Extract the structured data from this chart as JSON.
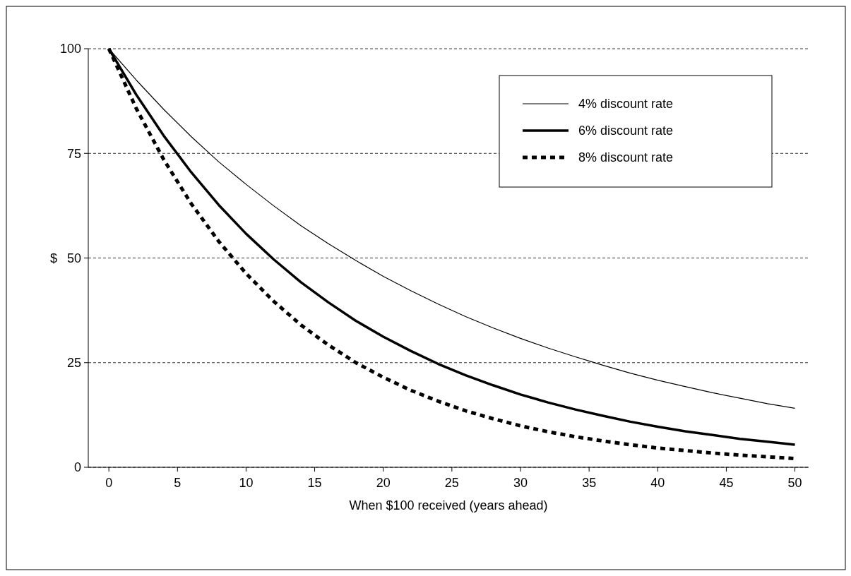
{
  "chart_data": {
    "type": "line",
    "xlabel": "When $100 received (years ahead)",
    "ylabel": "$",
    "x": [
      0,
      2,
      4,
      6,
      8,
      10,
      12,
      14,
      16,
      18,
      20,
      22,
      24,
      26,
      28,
      30,
      32,
      34,
      36,
      38,
      40,
      42,
      44,
      46,
      48,
      50
    ],
    "series": [
      {
        "name": "4% discount rate",
        "color": "#000000",
        "line_style": "solid",
        "values": [
          100,
          92.5,
          85.5,
          79,
          73,
          67.6,
          62.5,
          57.7,
          53.4,
          49.4,
          45.6,
          42.2,
          39,
          36,
          33.3,
          30.8,
          28.5,
          26.4,
          24.4,
          22.5,
          20.8,
          19.3,
          17.8,
          16.5,
          15.2,
          14.1
        ]
      },
      {
        "name": "6% discount rate",
        "color": "#000000",
        "line_style": "solid",
        "values": [
          100,
          89,
          79.2,
          70.5,
          62.7,
          55.8,
          49.7,
          44.2,
          39.4,
          35,
          31.2,
          27.8,
          24.7,
          22,
          19.6,
          17.4,
          15.5,
          13.8,
          12.3,
          10.9,
          9.7,
          8.6,
          7.7,
          6.8,
          6.1,
          5.4
        ]
      },
      {
        "name": "8% discount rate",
        "color": "#000000",
        "line_style": "dashed",
        "values": [
          100,
          85.7,
          73.5,
          63,
          54,
          46.3,
          39.7,
          34,
          29.2,
          25,
          21.5,
          18.4,
          15.8,
          13.5,
          11.6,
          9.9,
          8.5,
          7.3,
          6.3,
          5.4,
          4.6,
          4,
          3.4,
          2.9,
          2.5,
          2.1
        ]
      }
    ],
    "xlim": [
      -1.5,
      51
    ],
    "xticks": [
      0,
      5,
      10,
      15,
      20,
      25,
      30,
      35,
      40,
      45,
      50
    ],
    "ylim": [
      0,
      100
    ],
    "yticks": [
      0,
      25,
      50,
      75,
      100
    ],
    "grid": "y",
    "legend": "top right"
  }
}
